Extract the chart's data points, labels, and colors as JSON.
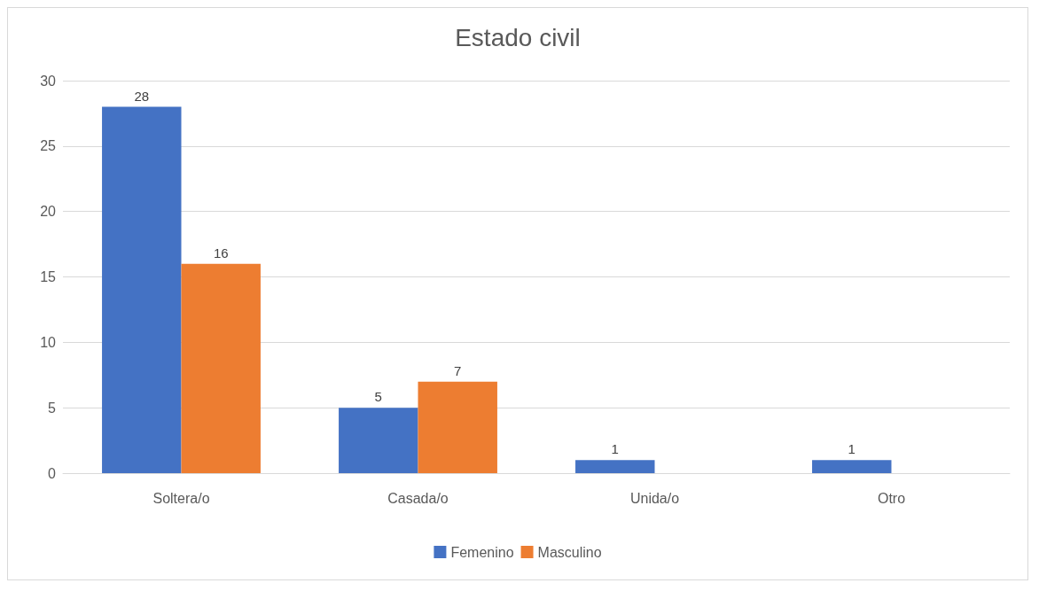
{
  "chart_data": {
    "type": "bar",
    "title": "Estado civil",
    "categories": [
      "Soltera/o",
      "Casada/o",
      "Unida/o",
      "Otro"
    ],
    "series": [
      {
        "name": "Femenino",
        "color": "#4472c4",
        "values": [
          28,
          5,
          1,
          1
        ]
      },
      {
        "name": "Masculino",
        "color": "#ed7d31",
        "values": [
          16,
          7,
          null,
          null
        ]
      }
    ],
    "ylim": [
      0,
      30
    ],
    "yticks": [
      0,
      5,
      10,
      15,
      20,
      25,
      30
    ],
    "grid": "y",
    "legend": "bottom",
    "data_labels": true
  }
}
